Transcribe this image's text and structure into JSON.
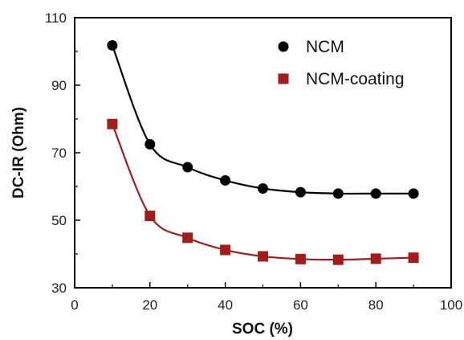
{
  "chart_data": {
    "type": "line",
    "title": "",
    "xlabel": "SOC (%)",
    "ylabel": "DC-IR (Ohm)",
    "xlim": [
      0,
      100
    ],
    "ylim": [
      30,
      110
    ],
    "xticks": [
      0,
      20,
      40,
      60,
      80,
      100
    ],
    "yticks": [
      30,
      50,
      70,
      90,
      110
    ],
    "x": [
      10,
      20,
      30,
      40,
      50,
      60,
      70,
      80,
      90
    ],
    "grid": false,
    "legend_position": "top-right",
    "series": [
      {
        "name": "NCM",
        "marker": "circle",
        "color": "#000000",
        "values": [
          101.8,
          72.5,
          65.7,
          61.8,
          59.4,
          58.3,
          57.9,
          57.9,
          57.9
        ]
      },
      {
        "name": "NCM-coating",
        "marker": "square",
        "color": "#a31b1b",
        "values": [
          78.5,
          51.3,
          44.8,
          41.2,
          39.3,
          38.5,
          38.3,
          38.6,
          38.9
        ]
      }
    ]
  }
}
